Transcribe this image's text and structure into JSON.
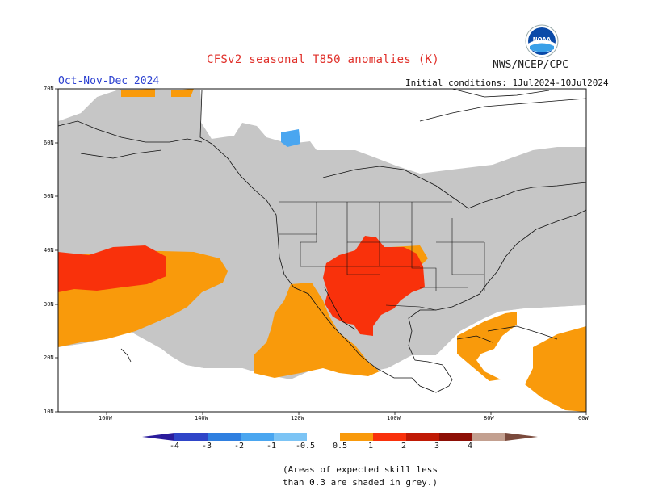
{
  "header": {
    "title": "CFSv2 seasonal T850 anomalies (K)",
    "agency": "NWS/NCEP/CPC",
    "period": "Oct-Nov-Dec 2024",
    "initial_conditions": "Initial conditions: 1Jul2024-10Jul2024",
    "logo_text": "NOAA"
  },
  "axes": {
    "lat_labels": [
      "70N",
      "60N",
      "50N",
      "40N",
      "30N",
      "20N",
      "10N"
    ],
    "lon_labels": [
      "160W",
      "140W",
      "120W",
      "100W",
      "80W",
      "60W"
    ]
  },
  "colorbar": {
    "labels": [
      "-4",
      "-3",
      "-2",
      "-1",
      "-0.5",
      "0.5",
      "1",
      "2",
      "3",
      "4"
    ],
    "colors": [
      "#2b1c9c",
      "#2f45c8",
      "#2f7fe0",
      "#4aa6f0",
      "#7cc4f5",
      "#ffffff",
      "#f99a0b",
      "#f9310b",
      "#c01a05",
      "#8d0f06",
      "#c3a090",
      "#7a4a3c"
    ]
  },
  "notes": {
    "line1": "(Areas of expected skill less",
    "line2": "than 0.3 are shaded in grey.)"
  }
}
